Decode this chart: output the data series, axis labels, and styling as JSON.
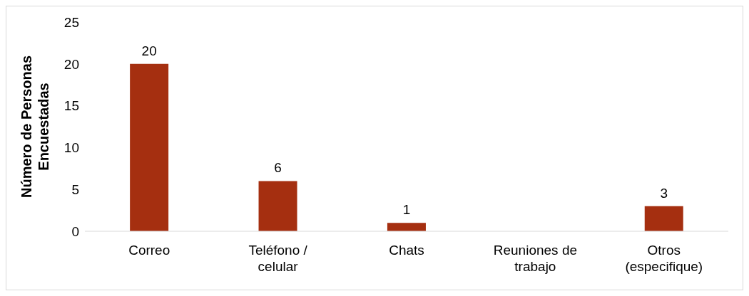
{
  "chart_data": {
    "type": "bar",
    "ylabel": "Número de Personas Encuestadas",
    "categories": [
      "Correo",
      "Teléfono / celular",
      "Chats",
      "Reuniones de trabajo",
      "Otros (especifique)"
    ],
    "values": [
      20,
      6,
      1,
      0,
      3
    ],
    "value_labels": [
      "20",
      "6",
      "1",
      null,
      "3"
    ],
    "color": "#a52f10",
    "ylim": [
      0,
      25
    ],
    "yticks": [
      0,
      5,
      10,
      15,
      20,
      25
    ],
    "grid": false
  }
}
